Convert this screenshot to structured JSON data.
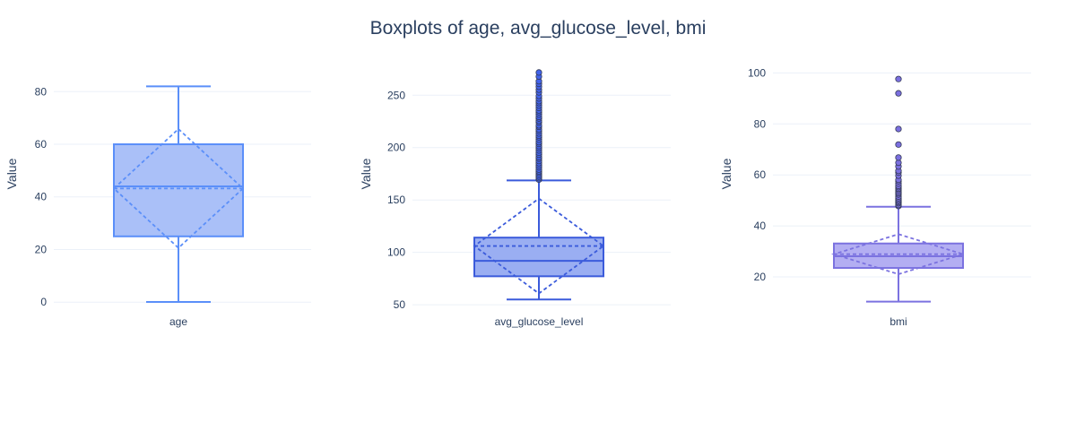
{
  "title": "Boxplots of age, avg_glucose_level, bmi",
  "chart_data": [
    {
      "type": "box",
      "category": "age",
      "ylabel": "Value",
      "ylim": [
        -3,
        91
      ],
      "yticks": [
        0,
        20,
        40,
        60,
        80
      ],
      "color": "#636efa",
      "line_color": "#5b8ff9",
      "fill_color": "#aac0f8",
      "stats": {
        "min": 0.08,
        "q1": 25,
        "median": 44,
        "q3": 60,
        "max": 82,
        "mean": 43.2,
        "sd": 22.6
      },
      "outliers": []
    },
    {
      "type": "box",
      "category": "avg_glucose_level",
      "ylabel": "Value",
      "ylim": [
        45,
        281
      ],
      "yticks": [
        50,
        100,
        150,
        200,
        250
      ],
      "color": "#4263eb",
      "line_color": "#3b5bdb",
      "fill_color": "#9aaef2",
      "stats": {
        "min": 55.1,
        "q1": 77.2,
        "median": 91.9,
        "q3": 114.1,
        "max": 168.7,
        "mean": 106.1,
        "sd": 45.3
      },
      "outliers": [
        169.5,
        170.8,
        172.3,
        174,
        175.9,
        177.3,
        179,
        181.2,
        183,
        185.1,
        187.2,
        189.4,
        191,
        193.2,
        195.1,
        197.3,
        199.5,
        201.4,
        203.5,
        205.2,
        207.6,
        209.8,
        211.3,
        213.5,
        215.7,
        217.4,
        219.8,
        221.2,
        223.9,
        225.5,
        227.8,
        229.3,
        231.6,
        233.7,
        235.4,
        237.9,
        240.1,
        242.5,
        244.3,
        246.9,
        249.3,
        252.7,
        255.3,
        258.1,
        260.8,
        263.3,
        267.8,
        271.7
      ]
    },
    {
      "type": "box",
      "category": "bmi",
      "ylabel": "Value",
      "ylim": [
        7,
        104
      ],
      "yticks": [
        20,
        40,
        60,
        80,
        100
      ],
      "color": "#7b6fe0",
      "line_color": "#7b72e0",
      "fill_color": "#b3aef2",
      "stats": {
        "min": 10.3,
        "q1": 23.5,
        "median": 28.1,
        "q3": 33.1,
        "max": 47.5,
        "mean": 28.9,
        "sd": 7.85
      },
      "outliers": [
        47.8,
        48.2,
        48.9,
        49.3,
        49.8,
        50.3,
        50.9,
        51.5,
        52.3,
        52.8,
        53.4,
        54.1,
        54.6,
        55.2,
        55.7,
        56.6,
        57.5,
        58.1,
        59.7,
        60.9,
        61.6,
        63.3,
        64.8,
        66.8,
        71.9,
        78,
        92,
        97.6
      ]
    }
  ]
}
